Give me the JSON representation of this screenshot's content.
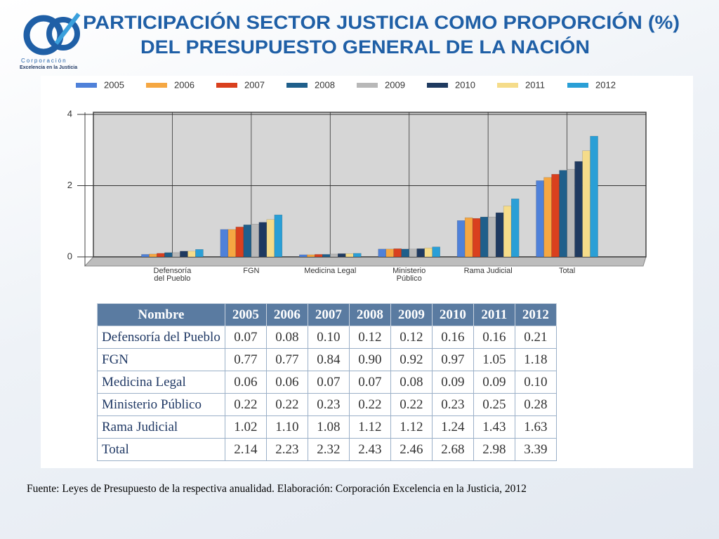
{
  "title": [
    "PARTICIPACIÓN SECTOR JUSTICIA COMO PROPORCIÓN (%)",
    "DEL PRESUPUESTO GENERAL DE LA NACIÓN"
  ],
  "logo": {
    "name": "Corporación",
    "subtitle": "Excelencia en la Justicia"
  },
  "chart_data": {
    "type": "bar",
    "categories": [
      "Defensoría del Pueblo",
      "FGN",
      "Medicina Legal",
      "Ministerio Público",
      "Rama Judicial",
      "Total"
    ],
    "series": [
      {
        "name": "2005",
        "color": "#4f81d9",
        "values": [
          0.07,
          0.77,
          0.06,
          0.22,
          1.02,
          2.14
        ]
      },
      {
        "name": "2006",
        "color": "#f5a742",
        "values": [
          0.08,
          0.77,
          0.06,
          0.22,
          1.1,
          2.23
        ]
      },
      {
        "name": "2007",
        "color": "#d9401e",
        "values": [
          0.1,
          0.84,
          0.07,
          0.23,
          1.08,
          2.32
        ]
      },
      {
        "name": "2008",
        "color": "#1f5f8b",
        "values": [
          0.12,
          0.9,
          0.07,
          0.22,
          1.12,
          2.43
        ]
      },
      {
        "name": "2009",
        "color": "#b8b8b8",
        "values": [
          0.12,
          0.92,
          0.08,
          0.22,
          1.12,
          2.46
        ]
      },
      {
        "name": "2010",
        "color": "#1f3a60",
        "values": [
          0.16,
          0.97,
          0.09,
          0.23,
          1.24,
          2.68
        ]
      },
      {
        "name": "2011",
        "color": "#f5dc8a",
        "values": [
          0.16,
          1.05,
          0.09,
          0.25,
          1.43,
          2.98
        ]
      },
      {
        "name": "2012",
        "color": "#2a9fd6",
        "values": [
          0.21,
          1.18,
          0.1,
          0.28,
          1.63,
          3.39
        ]
      }
    ],
    "ylim": [
      0,
      4
    ],
    "yticks": [
      0,
      2,
      4
    ],
    "grid": true,
    "legend": "top"
  },
  "table": {
    "header": [
      "Nombre",
      "2005",
      "2006",
      "2007",
      "2008",
      "2009",
      "2010",
      "2011",
      "2012"
    ],
    "rows": [
      [
        "Defensoría del Pueblo",
        "0.07",
        "0.08",
        "0.10",
        "0.12",
        "0.12",
        "0.16",
        "0.16",
        "0.21"
      ],
      [
        "FGN",
        "0.77",
        "0.77",
        "0.84",
        "0.90",
        "0.92",
        "0.97",
        "1.05",
        "1.18"
      ],
      [
        "Medicina Legal",
        "0.06",
        "0.06",
        "0.07",
        "0.07",
        "0.08",
        "0.09",
        "0.09",
        "0.10"
      ],
      [
        "Ministerio Público",
        "0.22",
        "0.22",
        "0.23",
        "0.22",
        "0.22",
        "0.23",
        "0.25",
        "0.28"
      ],
      [
        "Rama Judicial",
        "1.02",
        "1.10",
        "1.08",
        "1.12",
        "1.12",
        "1.24",
        "1.43",
        "1.63"
      ],
      [
        "Total",
        "2.14",
        "2.23",
        "2.32",
        "2.43",
        "2.46",
        "2.68",
        "2.98",
        "3.39"
      ]
    ]
  },
  "source": "Fuente: Leyes de Presupuesto de la respectiva anualidad. Elaboración: Corporación Excelencia en la Justicia, 2012"
}
